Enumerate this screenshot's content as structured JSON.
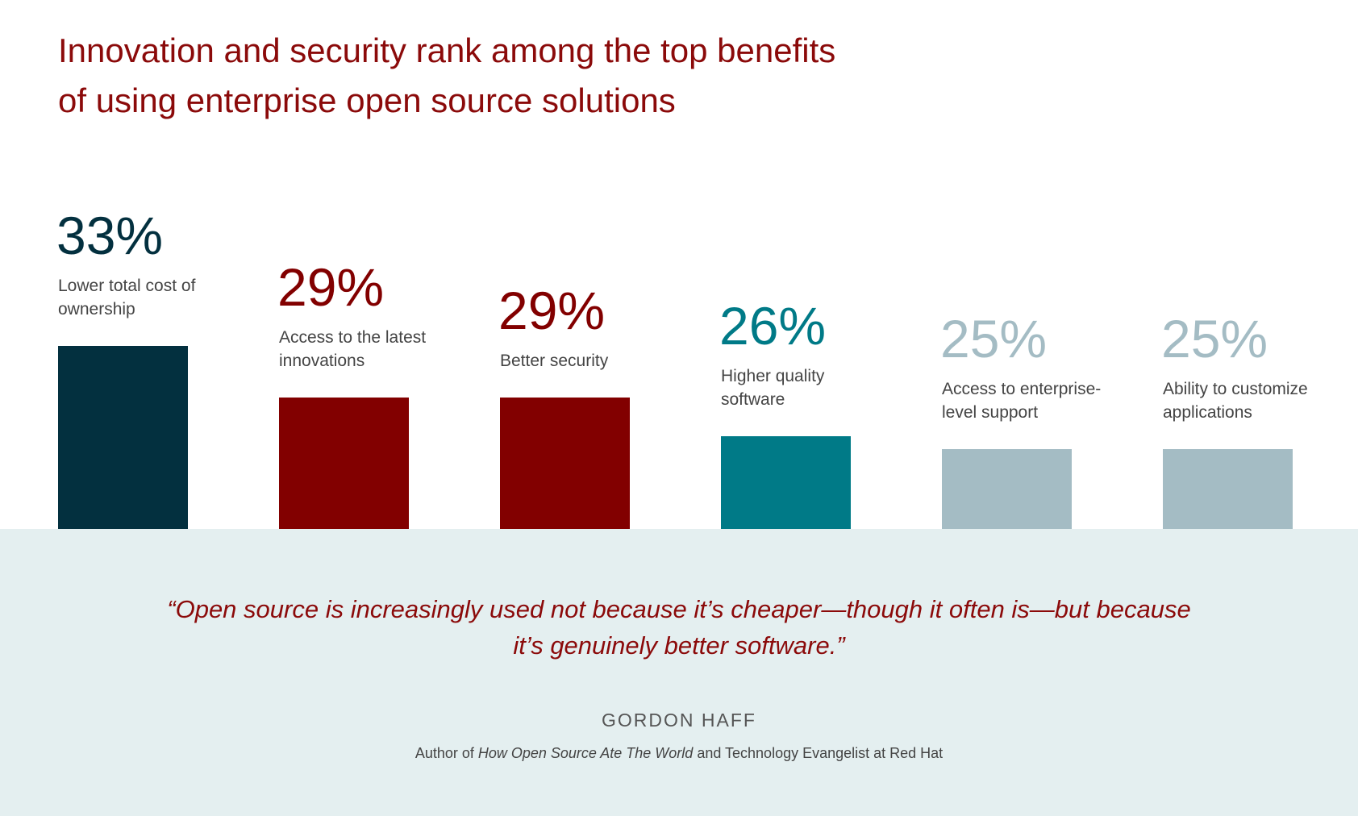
{
  "header": {
    "title_lines": [
      "Innovation and security rank among the top benefits",
      "of using enterprise open source solutions"
    ]
  },
  "chart_data": {
    "type": "bar",
    "title": "Innovation and security rank among the top benefits of using enterprise open source solutions",
    "unit": "%",
    "categories": [
      "Lower total cost of ownership",
      "Access to the latest innovations",
      "Better security",
      "Higher quality software",
      "Access to enterprise-level support",
      "Ability to customize applications"
    ],
    "category_lines": [
      [
        "Lower total cost of",
        "ownership"
      ],
      [
        "Access to the latest",
        "innovations"
      ],
      [
        "Better security"
      ],
      [
        "Higher quality",
        "software"
      ],
      [
        "Access to enterprise-",
        "level support"
      ],
      [
        "Ability to customize",
        "applications"
      ]
    ],
    "values": [
      33,
      29,
      29,
      26,
      25,
      25
    ],
    "value_labels": [
      "33%",
      "29%",
      "29%",
      "26%",
      "25%",
      "25%"
    ],
    "bar_colors": [
      "#03303f",
      "#820000",
      "#820000",
      "#007a87",
      "#a4bcc4",
      "#a4bcc4"
    ],
    "label_colors": [
      "#03303f",
      "#820000",
      "#820000",
      "#007a87",
      "#a4bcc4",
      "#a4bcc4"
    ],
    "axes": "none",
    "grid": false,
    "legend": "none"
  },
  "quote": {
    "lines": [
      "“Open source is increasingly used not because it’s cheaper—though it often is—but because",
      "it’s genuinely better software.”"
    ],
    "author_name": "GORDON HAFF",
    "author_role_prefix": "Author of ",
    "author_role_book": "How Open Source Ate The World",
    "author_role_suffix": " and Technology Evangelist at Red Hat"
  },
  "colors": {
    "title": "#8b0a0a",
    "quote_panel_bg": "#e4eff0"
  }
}
